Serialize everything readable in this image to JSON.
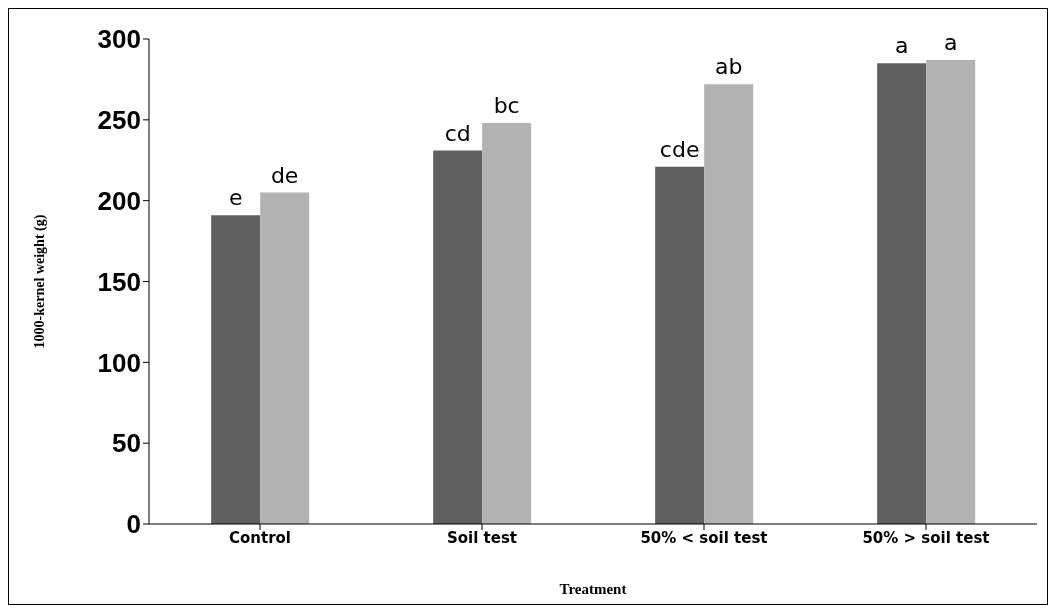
{
  "chart_data": {
    "type": "bar",
    "xlabel": "Treatment",
    "ylabel": "1000-kernel weight (g)",
    "categories": [
      "Control",
      "Soil test",
      "50% < soil test",
      "50% > soil test"
    ],
    "series": [
      {
        "color": "#606060",
        "values": [
          191,
          231,
          221,
          285
        ],
        "value_labels": [
          "e",
          "cd",
          "cde",
          "a"
        ]
      },
      {
        "color": "#b2b2b2",
        "values": [
          205,
          248,
          272,
          287
        ],
        "value_labels": [
          "de",
          "bc",
          "ab",
          "a"
        ]
      }
    ],
    "ylim": [
      0,
      300
    ],
    "yticks": [
      0,
      50,
      100,
      150,
      200,
      250,
      300
    ],
    "grid": false,
    "legend": false
  }
}
